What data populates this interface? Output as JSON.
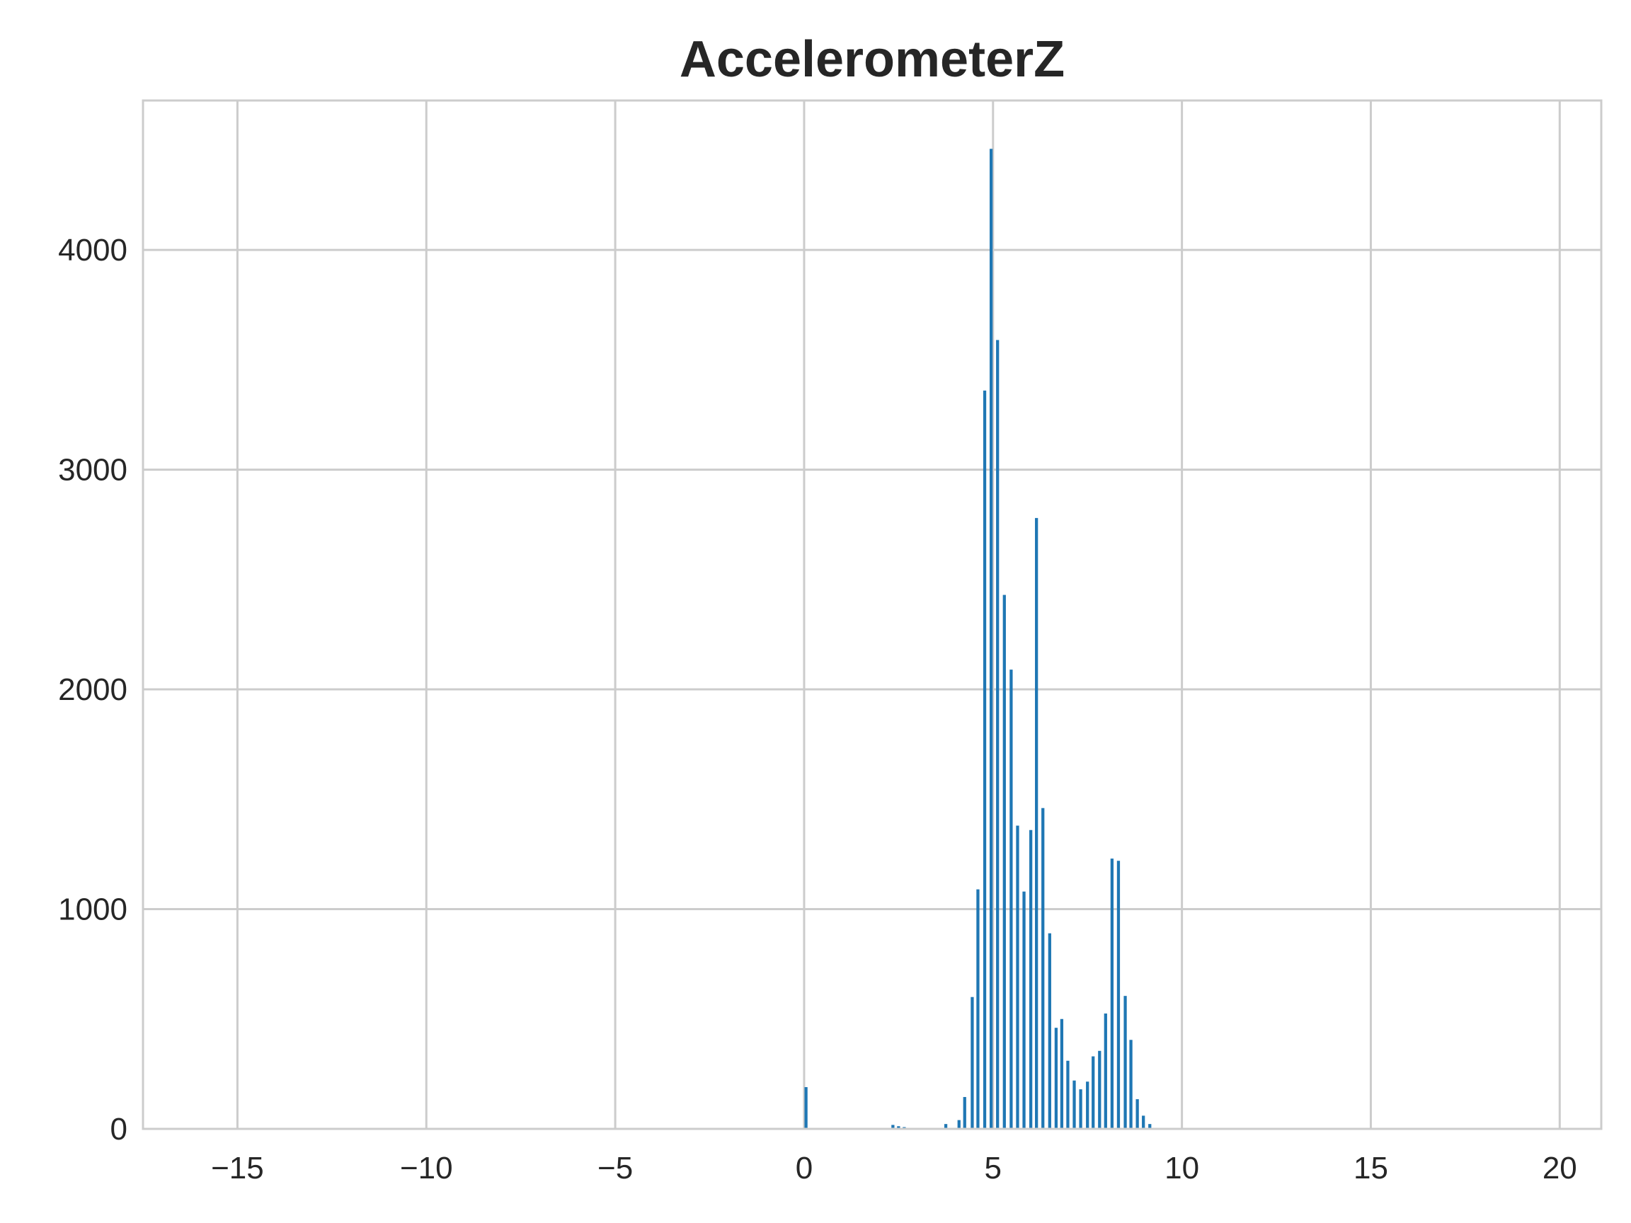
{
  "chart_data": {
    "type": "bar",
    "title": "AccelerometerZ",
    "xlabel": "",
    "ylabel": "",
    "xlim": [
      -17.5,
      21.1
    ],
    "ylim": [
      0,
      4680
    ],
    "grid": true,
    "bar_width": 0.08,
    "color": "#1f77b4",
    "xticks": [
      {
        "value": -15,
        "label": "−15"
      },
      {
        "value": -10,
        "label": "−10"
      },
      {
        "value": -5,
        "label": "−5"
      },
      {
        "value": 0,
        "label": "0"
      },
      {
        "value": 5,
        "label": "5"
      },
      {
        "value": 10,
        "label": "10"
      },
      {
        "value": 15,
        "label": "15"
      },
      {
        "value": 20,
        "label": "20"
      }
    ],
    "yticks": [
      {
        "value": 0,
        "label": "0"
      },
      {
        "value": 1000,
        "label": "1000"
      },
      {
        "value": 2000,
        "label": "2000"
      },
      {
        "value": 3000,
        "label": "3000"
      },
      {
        "value": 4000,
        "label": "4000"
      }
    ],
    "bins": [
      {
        "x": 0.05,
        "count": 190
      },
      {
        "x": 2.35,
        "count": 18
      },
      {
        "x": 2.5,
        "count": 12
      },
      {
        "x": 2.65,
        "count": 8
      },
      {
        "x": 3.75,
        "count": 22
      },
      {
        "x": 4.1,
        "count": 40
      },
      {
        "x": 4.25,
        "count": 145
      },
      {
        "x": 4.45,
        "count": 600
      },
      {
        "x": 4.6,
        "count": 1090
      },
      {
        "x": 4.78,
        "count": 3360
      },
      {
        "x": 4.95,
        "count": 4460
      },
      {
        "x": 5.12,
        "count": 3590
      },
      {
        "x": 5.3,
        "count": 2430
      },
      {
        "x": 5.48,
        "count": 2090
      },
      {
        "x": 5.65,
        "count": 1380
      },
      {
        "x": 5.82,
        "count": 1080
      },
      {
        "x": 6.0,
        "count": 1360
      },
      {
        "x": 6.15,
        "count": 2780
      },
      {
        "x": 6.32,
        "count": 1460
      },
      {
        "x": 6.5,
        "count": 890
      },
      {
        "x": 6.67,
        "count": 460
      },
      {
        "x": 6.82,
        "count": 500
      },
      {
        "x": 6.98,
        "count": 310
      },
      {
        "x": 7.15,
        "count": 220
      },
      {
        "x": 7.32,
        "count": 180
      },
      {
        "x": 7.5,
        "count": 215
      },
      {
        "x": 7.65,
        "count": 330
      },
      {
        "x": 7.82,
        "count": 355
      },
      {
        "x": 7.98,
        "count": 525
      },
      {
        "x": 8.15,
        "count": 1230
      },
      {
        "x": 8.32,
        "count": 1220
      },
      {
        "x": 8.5,
        "count": 605
      },
      {
        "x": 8.65,
        "count": 405
      },
      {
        "x": 8.82,
        "count": 135
      },
      {
        "x": 8.98,
        "count": 60
      },
      {
        "x": 9.15,
        "count": 22
      }
    ]
  }
}
